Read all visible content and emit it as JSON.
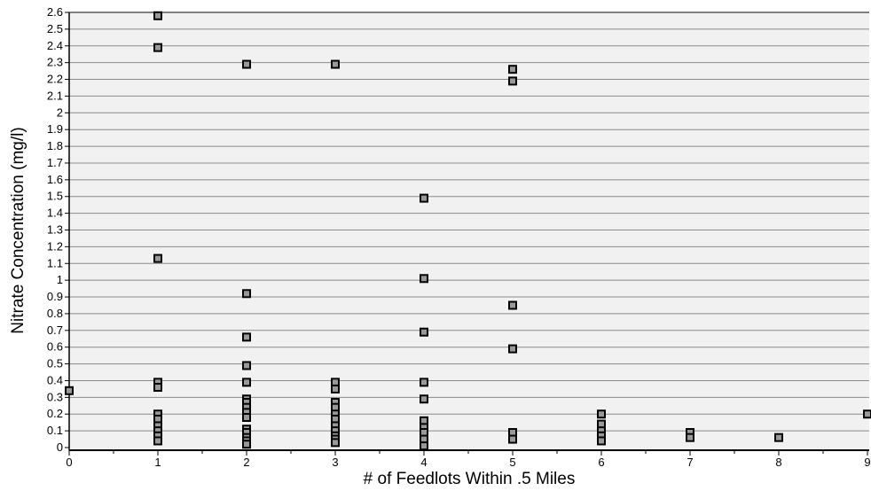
{
  "chart_data": {
    "type": "scatter",
    "title": "",
    "xlabel": "# of Feedlots Within .5 Miles",
    "ylabel": "Nitrate Concentration (mg/l)",
    "xlim": [
      0,
      9
    ],
    "ylim": [
      0,
      2.6
    ],
    "x_ticks": [
      0,
      1,
      2,
      3,
      4,
      5,
      6,
      7,
      8,
      9
    ],
    "y_ticks": [
      0,
      0.1,
      0.2,
      0.3,
      0.4,
      0.5,
      0.6,
      0.7,
      0.8,
      0.9,
      1,
      1.1,
      1.2,
      1.3,
      1.4,
      1.5,
      1.6,
      1.7,
      1.8,
      1.9,
      2,
      2.1,
      2.2,
      2.3,
      2.4,
      2.5,
      2.6
    ],
    "grid": "horizontal",
    "legend": "none",
    "marker_color": "#999999",
    "marker_edge_color": "#000000",
    "series": [
      {
        "points": [
          [
            0,
            0.34
          ],
          [
            1,
            2.58
          ],
          [
            1,
            2.39
          ],
          [
            1,
            1.13
          ],
          [
            1,
            0.39
          ],
          [
            1,
            0.36
          ],
          [
            1,
            0.2
          ],
          [
            1,
            0.17
          ],
          [
            1,
            0.13
          ],
          [
            1,
            0.1
          ],
          [
            1,
            0.07
          ],
          [
            1,
            0.04
          ],
          [
            2,
            2.29
          ],
          [
            2,
            0.92
          ],
          [
            2,
            0.66
          ],
          [
            2,
            0.49
          ],
          [
            2,
            0.39
          ],
          [
            2,
            0.29
          ],
          [
            2,
            0.27
          ],
          [
            2,
            0.24
          ],
          [
            2,
            0.21
          ],
          [
            2,
            0.18
          ],
          [
            2,
            0.11
          ],
          [
            2,
            0.09
          ],
          [
            2,
            0.06
          ],
          [
            2,
            0.04
          ],
          [
            2,
            0.02
          ],
          [
            3,
            2.29
          ],
          [
            3,
            0.39
          ],
          [
            3,
            0.35
          ],
          [
            3,
            0.27
          ],
          [
            3,
            0.24
          ],
          [
            3,
            0.2
          ],
          [
            3,
            0.17
          ],
          [
            3,
            0.13
          ],
          [
            3,
            0.1
          ],
          [
            3,
            0.07
          ],
          [
            3,
            0.05
          ],
          [
            3,
            0.03
          ],
          [
            4,
            1.49
          ],
          [
            4,
            1.01
          ],
          [
            4,
            0.69
          ],
          [
            4,
            0.39
          ],
          [
            4,
            0.29
          ],
          [
            4,
            0.16
          ],
          [
            4,
            0.12
          ],
          [
            4,
            0.09
          ],
          [
            4,
            0.05
          ],
          [
            4,
            0.01
          ],
          [
            5,
            2.26
          ],
          [
            5,
            2.19
          ],
          [
            5,
            0.85
          ],
          [
            5,
            0.59
          ],
          [
            5,
            0.09
          ],
          [
            5,
            0.05
          ],
          [
            6,
            0.2
          ],
          [
            6,
            0.14
          ],
          [
            6,
            0.1
          ],
          [
            6,
            0.07
          ],
          [
            6,
            0.04
          ],
          [
            7,
            0.09
          ],
          [
            7,
            0.06
          ],
          [
            8,
            0.06
          ],
          [
            9,
            0.2
          ]
        ]
      }
    ]
  }
}
